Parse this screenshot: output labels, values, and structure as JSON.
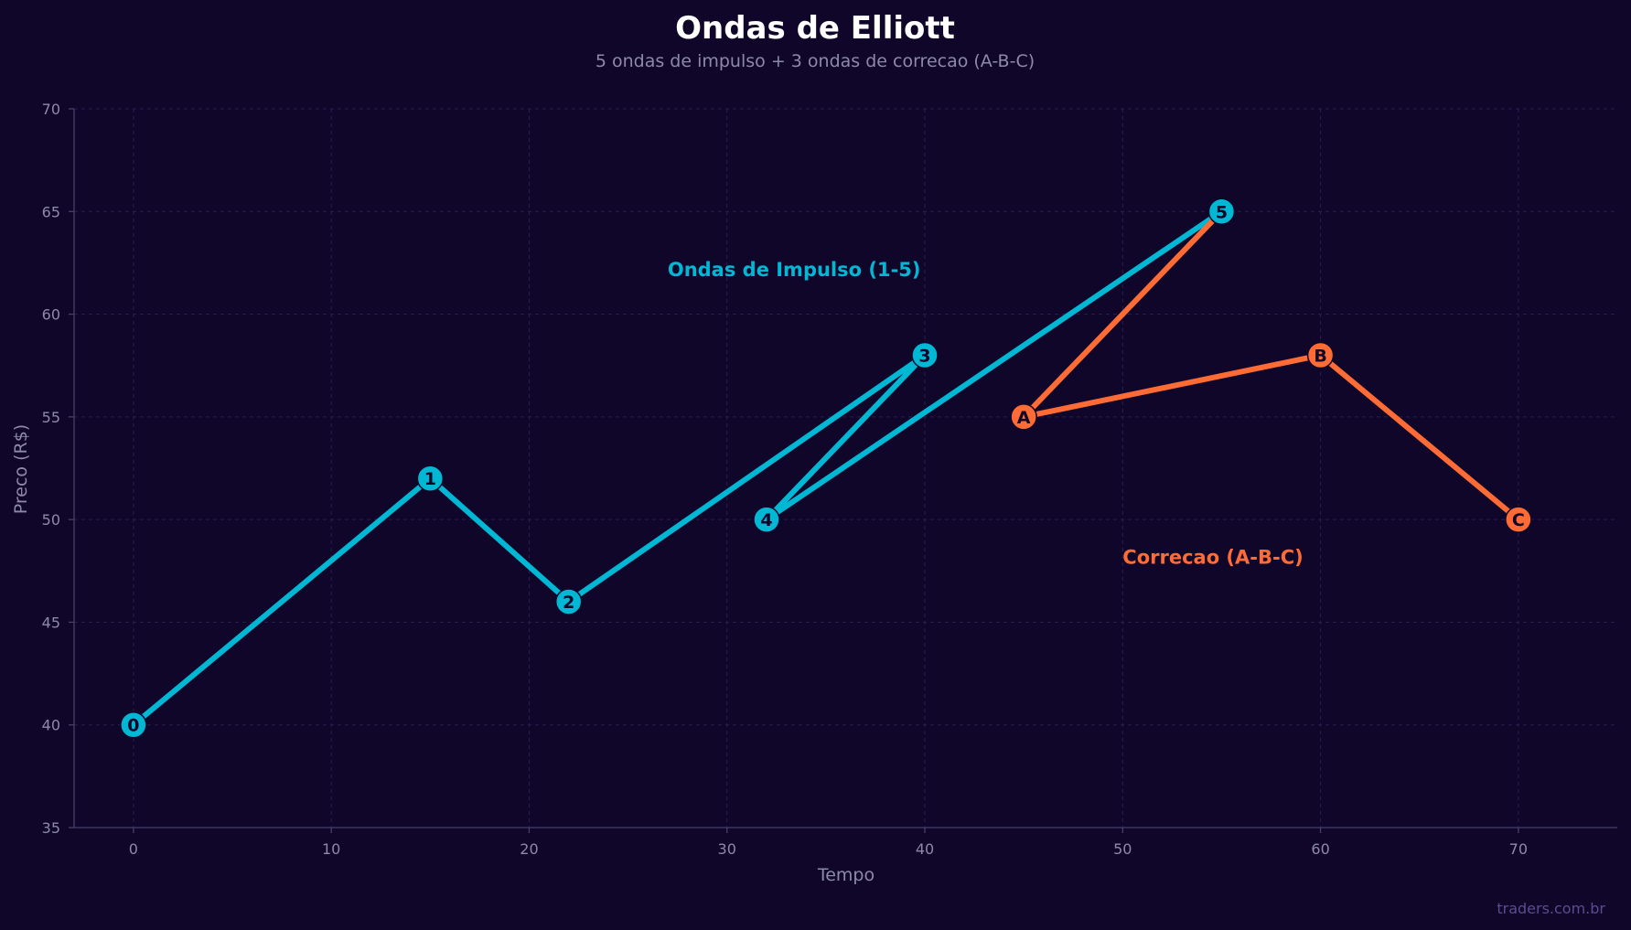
{
  "chart_data": {
    "type": "line",
    "title": "Ondas de Elliott",
    "subtitle": "5 ondas de impulso + 3 ondas de correcao (A-B-C)",
    "xlabel": "Tempo",
    "ylabel": "Preco (R$)",
    "xlim": [
      -3,
      75
    ],
    "ylim": [
      35,
      70
    ],
    "xticks": [
      0,
      10,
      20,
      30,
      40,
      50,
      60,
      70
    ],
    "yticks": [
      35,
      40,
      45,
      50,
      55,
      60,
      65,
      70
    ],
    "grid": true,
    "series": [
      {
        "color": "#00b8d4",
        "points": [
          {
            "x": 0,
            "y": 40,
            "label": "0"
          },
          {
            "x": 15,
            "y": 52,
            "label": "1"
          },
          {
            "x": 22,
            "y": 46,
            "label": "2"
          },
          {
            "x": 40,
            "y": 58,
            "label": "3"
          },
          {
            "x": 32,
            "y": 50,
            "label": "4"
          },
          {
            "x": 55,
            "y": 65,
            "label": "5"
          }
        ]
      },
      {
        "color": "#ff6b35",
        "points": [
          {
            "x": 55,
            "y": 65,
            "label": ""
          },
          {
            "x": 45,
            "y": 55,
            "label": "A"
          },
          {
            "x": 60,
            "y": 58,
            "label": "B"
          },
          {
            "x": 70,
            "y": 50,
            "label": "C"
          }
        ]
      }
    ],
    "annotations": [
      {
        "text": "Ondas de Impulso (1-5)",
        "x": 27,
        "y": 62.2,
        "color": "#00b8d4"
      },
      {
        "text": "Correcao (A-B-C)",
        "x": 50,
        "y": 48.2,
        "color": "#ff6b35"
      }
    ]
  },
  "watermark": "traders.com.br"
}
